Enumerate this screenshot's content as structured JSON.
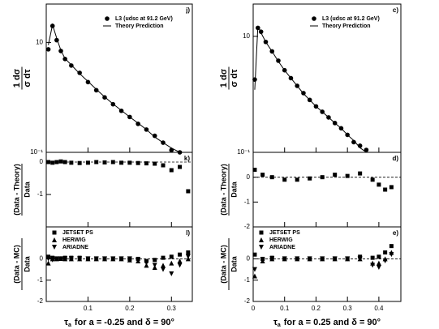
{
  "chart_data": [
    {
      "type": "scatter",
      "label": "j)",
      "log_y": true,
      "xlim": [
        0,
        0.35
      ],
      "ylim": [
        0.1,
        50
      ],
      "yticks": [
        {
          "value": 0.1,
          "label": "10⁻¹"
        },
        10
      ],
      "y_label_num": "1 dσ",
      "y_label_den": "σ dτ",
      "series": [
        {
          "name": "L3 (udsc at 91.2 GeV)",
          "marker": "circle",
          "color": "#000000",
          "x": [
            0.005,
            0.015,
            0.025,
            0.035,
            0.045,
            0.06,
            0.08,
            0.1,
            0.12,
            0.14,
            0.16,
            0.18,
            0.2,
            0.22,
            0.24,
            0.26,
            0.28,
            0.3,
            0.32
          ],
          "values": [
            7.5,
            20,
            11,
            7,
            5,
            3.8,
            2.8,
            1.9,
            1.35,
            1.0,
            0.75,
            0.57,
            0.44,
            0.33,
            0.26,
            0.2,
            0.15,
            0.11,
            0.1
          ]
        },
        {
          "name": "Theory Prediction",
          "marker": "line",
          "color": "#000000",
          "x": [
            0.005,
            0.015,
            0.025,
            0.035,
            0.045,
            0.06,
            0.08,
            0.1,
            0.12,
            0.14,
            0.16,
            0.18,
            0.2,
            0.22,
            0.24,
            0.26,
            0.28,
            0.3,
            0.32
          ],
          "values": [
            9,
            21,
            12,
            7.2,
            5.1,
            3.9,
            2.7,
            1.95,
            1.4,
            1.02,
            0.76,
            0.58,
            0.44,
            0.34,
            0.26,
            0.19,
            0.15,
            0.12,
            0.1
          ]
        }
      ]
    },
    {
      "type": "scatter",
      "label": "k)",
      "xlim": [
        0,
        0.35
      ],
      "ylim": [
        -2,
        0.3
      ],
      "yticks": [
        0,
        -1
      ],
      "reference_line": 0,
      "y_label_num": "(Data - Theory)",
      "y_label_den": "Data",
      "series": [
        {
          "marker": "square",
          "color": "#000000",
          "x": [
            0.005,
            0.015,
            0.025,
            0.035,
            0.045,
            0.06,
            0.08,
            0.1,
            0.12,
            0.14,
            0.16,
            0.18,
            0.2,
            0.22,
            0.24,
            0.26,
            0.28,
            0.3,
            0.32,
            0.34
          ],
          "values": [
            0,
            -0.02,
            0,
            0.02,
            0,
            -0.02,
            -0.03,
            -0.02,
            0,
            -0.01,
            0,
            -0.02,
            -0.02,
            -0.03,
            -0.04,
            -0.05,
            -0.1,
            -0.25,
            -0.15,
            -0.9
          ]
        }
      ]
    },
    {
      "type": "scatter",
      "label": "l)",
      "xlim": [
        0,
        0.35
      ],
      "ylim": [
        -2,
        1.5
      ],
      "yticks": [
        0,
        -1,
        -2
      ],
      "reference_line": 0,
      "xticks": [
        0.1,
        0.2,
        0.3
      ],
      "y_label_num": "(Data - MC)",
      "y_label_den": "Data",
      "x_label_symbol": "τ",
      "x_label_sub": "a",
      "x_label_rest": "for a = -0.25 and δ = 90°",
      "series": [
        {
          "name": "JETSET PS",
          "marker": "square",
          "color": "#000000",
          "x": [
            0.005,
            0.015,
            0.025,
            0.035,
            0.045,
            0.06,
            0.08,
            0.1,
            0.12,
            0.14,
            0.16,
            0.18,
            0.2,
            0.22,
            0.24,
            0.26,
            0.28,
            0.3,
            0.32,
            0.34
          ],
          "values": [
            0.1,
            0.05,
            0,
            0,
            0.05,
            0.05,
            0.05,
            0,
            0,
            0,
            0,
            0,
            0,
            0,
            -0.1,
            -0.05,
            0.05,
            0.1,
            0.2,
            0.3
          ]
        },
        {
          "name": "HERWIG",
          "marker": "triangle-up",
          "color": "#000000",
          "x": [
            0.005,
            0.015,
            0.025,
            0.035,
            0.045,
            0.06,
            0.08,
            0.1,
            0.12,
            0.14,
            0.16,
            0.18,
            0.2,
            0.22,
            0.24,
            0.26,
            0.28,
            0.3,
            0.32,
            0.34
          ],
          "values": [
            -0.2,
            0,
            0,
            0.02,
            0,
            0,
            0,
            0,
            0,
            0,
            0,
            0,
            -0.05,
            -0.1,
            -0.3,
            -0.4,
            -0.3,
            -0.2,
            -0.1,
            0
          ]
        },
        {
          "name": "ARIADNE",
          "marker": "triangle-down",
          "color": "#000000",
          "x": [
            0.005,
            0.015,
            0.025,
            0.035,
            0.045,
            0.06,
            0.08,
            0.1,
            0.12,
            0.14,
            0.16,
            0.18,
            0.2,
            0.22,
            0.24,
            0.26,
            0.28,
            0.3,
            0.32,
            0.34
          ],
          "values": [
            0,
            -0.05,
            0,
            0,
            0,
            0,
            0,
            0,
            0,
            0,
            0,
            0,
            0,
            -0.05,
            -0.2,
            -0.3,
            -0.5,
            -0.7,
            -0.3,
            0.1
          ]
        }
      ]
    },
    {
      "type": "scatter",
      "label": "c)",
      "log_y": true,
      "xlim": [
        0,
        0.47
      ],
      "ylim": [
        0.1,
        36
      ],
      "yticks": [
        {
          "value": 0.1,
          "label": "10⁻¹"
        },
        10
      ],
      "y_label_num": "1 dσ",
      "y_label_den": "σ dτ",
      "series": [
        {
          "name": "L3 (udsc at 91.2 GeV)",
          "marker": "circle",
          "color": "#000000",
          "x": [
            0.005,
            0.015,
            0.025,
            0.04,
            0.06,
            0.08,
            0.1,
            0.12,
            0.14,
            0.16,
            0.18,
            0.2,
            0.22,
            0.24,
            0.26,
            0.28,
            0.3,
            0.32,
            0.34,
            0.36
          ],
          "values": [
            1.8,
            14,
            12,
            8,
            5.5,
            3.8,
            2.6,
            1.9,
            1.4,
            1.05,
            0.8,
            0.62,
            0.5,
            0.4,
            0.32,
            0.26,
            0.2,
            0.15,
            0.13,
            0.11
          ]
        },
        {
          "name": "Theory Prediction",
          "marker": "line",
          "color": "#000000",
          "x": [
            0.005,
            0.015,
            0.025,
            0.04,
            0.06,
            0.08,
            0.1,
            0.12,
            0.14,
            0.16,
            0.18,
            0.2,
            0.22,
            0.24,
            0.26,
            0.28,
            0.3,
            0.32,
            0.34,
            0.36
          ],
          "values": [
            1.2,
            15,
            11.5,
            8,
            5.5,
            3.7,
            2.6,
            1.9,
            1.4,
            1.03,
            0.8,
            0.62,
            0.5,
            0.4,
            0.32,
            0.26,
            0.2,
            0.16,
            0.12,
            0.1
          ]
        }
      ]
    },
    {
      "type": "scatter",
      "label": "d)",
      "xlim": [
        0,
        0.47
      ],
      "ylim": [
        -2,
        1
      ],
      "yticks": [
        0,
        -1,
        -2
      ],
      "reference_line": 0,
      "y_label_num": "(Data - Theory)",
      "y_label_den": "Data",
      "series": [
        {
          "marker": "square",
          "color": "#000000",
          "x": [
            0.005,
            0.03,
            0.06,
            0.1,
            0.14,
            0.18,
            0.22,
            0.26,
            0.3,
            0.34,
            0.38,
            0.4,
            0.42,
            0.44
          ],
          "values": [
            0.3,
            0.1,
            0,
            -0.1,
            -0.1,
            -0.05,
            0,
            0.1,
            0.05,
            0.15,
            -0.1,
            -0.3,
            -0.5,
            -0.4
          ]
        }
      ]
    },
    {
      "type": "scatter",
      "label": "e)",
      "xlim": [
        0,
        0.47
      ],
      "ylim": [
        -2,
        1.5
      ],
      "yticks": [
        0,
        -1,
        -2
      ],
      "reference_line": 0,
      "xticks": [
        0,
        0.1,
        0.2,
        0.3,
        0.4
      ],
      "y_label_num": "(Data - MC)",
      "y_label_den": "Data",
      "x_label_symbol": "τ",
      "x_label_sub": "a",
      "x_label_rest": "for a = 0.25 and δ = 90°",
      "series": [
        {
          "name": "JETSET PS",
          "marker": "square",
          "color": "#000000",
          "x": [
            0.005,
            0.03,
            0.06,
            0.1,
            0.14,
            0.18,
            0.22,
            0.26,
            0.3,
            0.34,
            0.38,
            0.4,
            0.42,
            0.44
          ],
          "values": [
            0.2,
            0,
            0.05,
            0,
            0,
            0,
            0,
            0,
            0,
            0.1,
            0.05,
            0.1,
            0.3,
            0.6
          ]
        },
        {
          "name": "HERWIG",
          "marker": "triangle-up",
          "color": "#000000",
          "x": [
            0.005,
            0.03,
            0.06,
            0.1,
            0.14,
            0.18,
            0.22,
            0.26,
            0.3,
            0.34,
            0.38,
            0.4,
            0.42,
            0.44
          ],
          "values": [
            -0.8,
            -0.1,
            0,
            0,
            0,
            0,
            0,
            0,
            0,
            0,
            -0.2,
            -0.2,
            0,
            0.3
          ]
        },
        {
          "name": "ARIADNE",
          "marker": "triangle-down",
          "color": "#000000",
          "x": [
            0.005,
            0.03,
            0.06,
            0.1,
            0.14,
            0.18,
            0.22,
            0.26,
            0.3,
            0.34,
            0.38,
            0.4,
            0.42,
            0.44
          ],
          "values": [
            -0.5,
            -0.05,
            0,
            0,
            0,
            0,
            0,
            0,
            0,
            0,
            -0.3,
            -0.4,
            -0.1,
            0.2
          ]
        }
      ]
    }
  ]
}
